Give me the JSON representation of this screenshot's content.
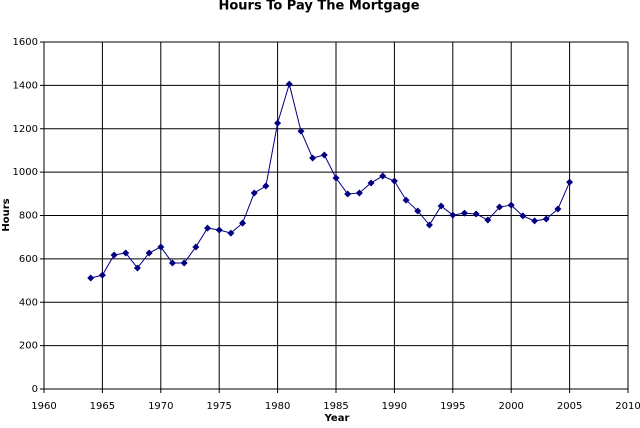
{
  "chart_data": {
    "type": "line",
    "title": "Hours To Pay The Mortgage",
    "x_label": "Year",
    "y_label": "Hours",
    "x": [
      1964,
      1965,
      1966,
      1967,
      1968,
      1969,
      1970,
      1971,
      1972,
      1973,
      1974,
      1975,
      1976,
      1977,
      1978,
      1979,
      1980,
      1981,
      1982,
      1983,
      1984,
      1985,
      1986,
      1987,
      1988,
      1989,
      1990,
      1991,
      1992,
      1993,
      1994,
      1995,
      1996,
      1997,
      1998,
      1999,
      2000,
      2001,
      2002,
      2003,
      2004,
      2005
    ],
    "values": [
      512,
      525,
      618,
      627,
      558,
      627,
      655,
      581,
      581,
      655,
      742,
      733,
      719,
      765,
      904,
      936,
      1226,
      1406,
      1189,
      1065,
      1079,
      973,
      899,
      904,
      950,
      982,
      959,
      871,
      821,
      756,
      844,
      802,
      811,
      807,
      779,
      839,
      848,
      798,
      775,
      784,
      830,
      954
    ],
    "color": "#000080",
    "xlim": [
      1960,
      2010
    ],
    "xticks": [
      1960,
      1965,
      1970,
      1975,
      1980,
      1985,
      1990,
      1995,
      2000,
      2005,
      2010
    ],
    "ylim": [
      0,
      1600
    ],
    "yticks": [
      0,
      200,
      400,
      600,
      800,
      1000,
      1200,
      1400,
      1600
    ],
    "grid": true
  }
}
